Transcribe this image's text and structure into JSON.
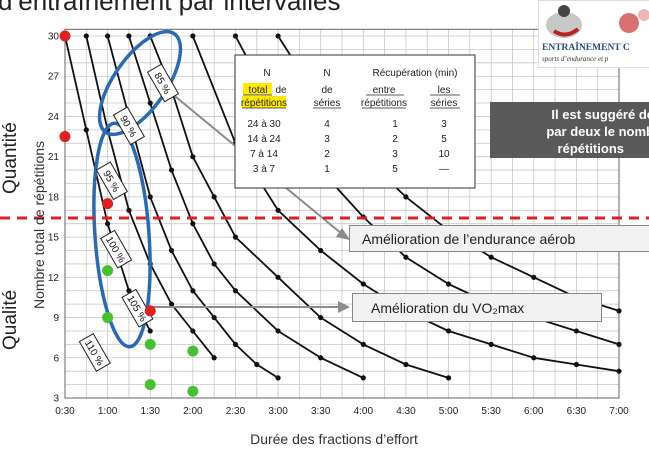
{
  "slide": {
    "title": "d’entraînement par intervalles",
    "side_labels": {
      "top": "Quantité",
      "bottom": "Qualité"
    },
    "logo": {
      "line1": "ENTRAÎNEMENT C",
      "line2": "sports d’endurance et p"
    },
    "callout_lines": [
      "Il est suggéré de",
      "par deux le nomb",
      "répétitions"
    ],
    "box_endurance": "Amélioration de l’endurance aérob",
    "box_vo2": "Amélioration du VO₂max",
    "colors": {
      "red_dots": "#e02020",
      "green_dots": "#44c030",
      "ellipse": "#2a6ab5",
      "dashed_line": "#e02020",
      "curves": "#111111",
      "callout_bg": "#595959"
    }
  },
  "chart_data": {
    "type": "line",
    "xlabel": "Durée des fractions d’effort",
    "ylabel": "Nombre total de répétitions",
    "x_tick_labels": [
      "0:30",
      "1:00",
      "1:30",
      "2:00",
      "2:30",
      "3:00",
      "3:30",
      "4:00",
      "4:30",
      "5:00",
      "5:30",
      "6:00",
      "6:30",
      "7:00"
    ],
    "x_ticks_minutes": [
      0.5,
      1,
      1.5,
      2,
      2.5,
      3,
      3.5,
      4,
      4.5,
      5,
      5.5,
      6,
      6.5,
      7
    ],
    "y_ticks": [
      3,
      6,
      9,
      12,
      15,
      18,
      21,
      24,
      27,
      30
    ],
    "xlim": [
      0.5,
      7
    ],
    "ylim": [
      3,
      30.5
    ],
    "grid": true,
    "series": [
      {
        "x": [
          0.5,
          0.75,
          1,
          1.25,
          1.5
        ],
        "y": [
          30,
          23,
          16,
          11,
          8
        ]
      },
      {
        "x": [
          0.75,
          1,
          1.25,
          1.5,
          1.75,
          2,
          2.25
        ],
        "y": [
          30,
          23,
          17,
          13,
          10,
          8,
          6
        ]
      },
      {
        "x": [
          1,
          1.25,
          1.5,
          1.75,
          2,
          2.25,
          2.5,
          2.75,
          3
        ],
        "y": [
          30,
          24,
          18,
          14,
          11,
          9,
          7,
          5.5,
          4.5
        ]
      },
      {
        "x": [
          1.25,
          1.5,
          1.75,
          2,
          2.25,
          2.5,
          3,
          3.5,
          4
        ],
        "y": [
          30,
          25,
          20,
          16,
          13,
          11,
          8,
          6,
          4.5
        ]
      },
      {
        "x": [
          1.5,
          1.75,
          2,
          2.25,
          2.5,
          3,
          3.5,
          4,
          4.5,
          5
        ],
        "y": [
          30,
          26,
          21,
          18,
          15,
          12,
          9,
          7,
          5.5,
          4.5
        ]
      },
      {
        "x": [
          2,
          2.5,
          3,
          3.5,
          4,
          4.5,
          5,
          5.5,
          6,
          6.5,
          7
        ],
        "y": [
          30,
          22,
          17,
          14,
          11.5,
          9.5,
          8,
          7,
          6,
          5.5,
          5
        ]
      },
      {
        "x": [
          2.5,
          3,
          3.5,
          4,
          4.5,
          5,
          5.5,
          6,
          6.5,
          7
        ],
        "y": [
          30,
          24,
          20,
          16.5,
          13.5,
          11.5,
          10,
          9,
          8,
          7
        ]
      },
      {
        "x": [
          3,
          3.5,
          4,
          4.5,
          5,
          5.5,
          6,
          6.5,
          7
        ],
        "y": [
          30,
          25,
          21,
          18,
          15.5,
          13.5,
          12,
          10.5,
          9.5
        ]
      }
    ],
    "red_points": [
      {
        "x": 0.5,
        "y": 30
      },
      {
        "x": 0.5,
        "y": 22.5
      },
      {
        "x": 1,
        "y": 17.5
      },
      {
        "x": 1.5,
        "y": 9.5
      }
    ],
    "green_points": [
      {
        "x": 1,
        "y": 12.5
      },
      {
        "x": 1,
        "y": 9
      },
      {
        "x": 1.5,
        "y": 7
      },
      {
        "x": 1.5,
        "y": 4
      },
      {
        "x": 2,
        "y": 6.5
      },
      {
        "x": 2,
        "y": 3.5
      }
    ],
    "curve_labels": [
      {
        "text": "85 %",
        "x": 1.65,
        "y": 26.5
      },
      {
        "text": "90 %",
        "x": 1.25,
        "y": 23.3
      },
      {
        "text": "95 %",
        "x": 1.05,
        "y": 19.2
      },
      {
        "text": "100 %",
        "x": 1.1,
        "y": 14.1
      },
      {
        "text": "105 %",
        "x": 1.35,
        "y": 9.7
      },
      {
        "text": "110 %",
        "x": 0.85,
        "y": 6.4
      }
    ],
    "table": {
      "headers": [
        [
          "N",
          "total de",
          "répétitions"
        ],
        [
          "N",
          "de",
          "séries"
        ],
        [
          "Récupération (min)"
        ],
        [
          "entre",
          "répétitions"
        ],
        [
          "les",
          "séries"
        ]
      ],
      "header_top": {
        "c1": "N",
        "c2": "N",
        "c3": "Récupération (min)"
      },
      "header_mid": {
        "c1a": "total",
        "c1b": "de",
        "c2": "de",
        "c3": "entre",
        "c4": "les"
      },
      "header_bot": {
        "c1": "répétitions",
        "c2": "séries",
        "c3": "répétitions",
        "c4": "séries"
      },
      "rows": [
        [
          "24 à 30",
          "4",
          "1",
          "3"
        ],
        [
          "14 à 24",
          "3",
          "2",
          "5"
        ],
        [
          "7 à 14",
          "2",
          "3",
          "10"
        ],
        [
          "3 à 7",
          "1",
          "5",
          "—"
        ]
      ]
    }
  }
}
